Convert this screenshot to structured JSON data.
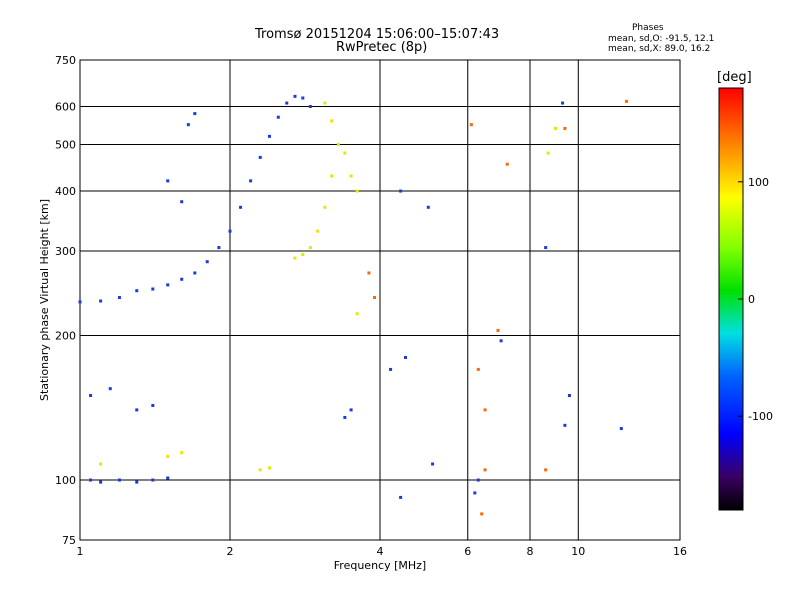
{
  "header": {
    "title": "Tromsø 20151204 15:06:00–15:07:43",
    "subtitle": "RwPretec (8p)"
  },
  "phases": {
    "title": "Phases",
    "line_o": "mean, sd,O: -91.5, 12.1",
    "line_x": "mean, sd,X:  89.0, 16.2"
  },
  "colorbar": {
    "label": "[deg]",
    "ticks": [
      "100",
      "0",
      "-100"
    ],
    "tick_values": [
      100,
      0,
      -100
    ],
    "range": [
      -180,
      180
    ]
  },
  "chart_data": {
    "type": "scatter",
    "xlabel": "Frequency [MHz]",
    "ylabel": "Stationary phase Virtual Height [km]",
    "xscale": "log",
    "yscale": "log",
    "xlim": [
      1,
      16
    ],
    "ylim": [
      75,
      750
    ],
    "x_ticks": [
      1,
      2,
      4,
      6,
      8,
      10,
      16
    ],
    "y_ticks": [
      75,
      100,
      200,
      300,
      400,
      500,
      600,
      750
    ],
    "grid": true,
    "series": [
      {
        "mode": "O",
        "color": "#1a3adf",
        "points": [
          [
            1.0,
            235
          ],
          [
            1.1,
            236
          ],
          [
            1.2,
            240
          ],
          [
            1.3,
            248
          ],
          [
            1.4,
            250
          ],
          [
            1.5,
            255
          ],
          [
            1.6,
            262
          ],
          [
            1.7,
            270
          ],
          [
            1.8,
            285
          ],
          [
            1.9,
            305
          ],
          [
            2.0,
            330
          ],
          [
            2.1,
            370
          ],
          [
            2.2,
            420
          ],
          [
            2.3,
            470
          ],
          [
            2.4,
            520
          ],
          [
            2.5,
            570
          ],
          [
            2.6,
            610
          ],
          [
            2.7,
            630
          ],
          [
            2.8,
            625
          ],
          [
            2.9,
            600
          ],
          [
            1.05,
            100
          ],
          [
            1.1,
            99
          ],
          [
            1.2,
            100
          ],
          [
            1.3,
            99
          ],
          [
            1.4,
            100
          ],
          [
            1.5,
            101
          ],
          [
            1.05,
            150
          ],
          [
            1.15,
            155
          ],
          [
            1.3,
            140
          ],
          [
            1.4,
            143
          ],
          [
            1.65,
            550
          ],
          [
            1.7,
            580
          ],
          [
            1.5,
            420
          ],
          [
            1.6,
            380
          ],
          [
            3.4,
            135
          ],
          [
            3.5,
            140
          ],
          [
            4.2,
            170
          ],
          [
            4.5,
            180
          ],
          [
            5.1,
            108
          ],
          [
            4.4,
            92
          ],
          [
            6.2,
            94
          ],
          [
            6.3,
            100
          ],
          [
            9.3,
            610
          ],
          [
            9.6,
            150
          ],
          [
            9.4,
            130
          ],
          [
            12.2,
            128
          ],
          [
            5.0,
            370
          ],
          [
            7.0,
            195
          ],
          [
            4.4,
            400
          ],
          [
            8.6,
            305
          ]
        ]
      },
      {
        "mode": "X",
        "color": "#e6e600",
        "points": [
          [
            2.7,
            290
          ],
          [
            2.8,
            295
          ],
          [
            2.9,
            305
          ],
          [
            3.0,
            330
          ],
          [
            3.1,
            370
          ],
          [
            3.2,
            430
          ],
          [
            3.3,
            500
          ],
          [
            3.2,
            560
          ],
          [
            3.1,
            610
          ],
          [
            3.4,
            480
          ],
          [
            3.5,
            430
          ],
          [
            3.6,
            400
          ],
          [
            1.5,
            112
          ],
          [
            1.6,
            114
          ],
          [
            2.3,
            105
          ],
          [
            2.4,
            106
          ],
          [
            1.1,
            108
          ],
          [
            3.6,
            222
          ],
          [
            9.0,
            540
          ],
          [
            8.7,
            480
          ]
        ]
      },
      {
        "mode": "mixed",
        "color": "#ff6600",
        "points": [
          [
            3.8,
            270
          ],
          [
            3.9,
            240
          ],
          [
            6.3,
            170
          ],
          [
            6.5,
            105
          ],
          [
            6.4,
            85
          ],
          [
            6.1,
            550
          ],
          [
            6.9,
            205
          ],
          [
            7.2,
            455
          ],
          [
            9.4,
            540
          ],
          [
            12.5,
            615
          ],
          [
            8.6,
            105
          ],
          [
            6.5,
            140
          ]
        ]
      }
    ]
  }
}
